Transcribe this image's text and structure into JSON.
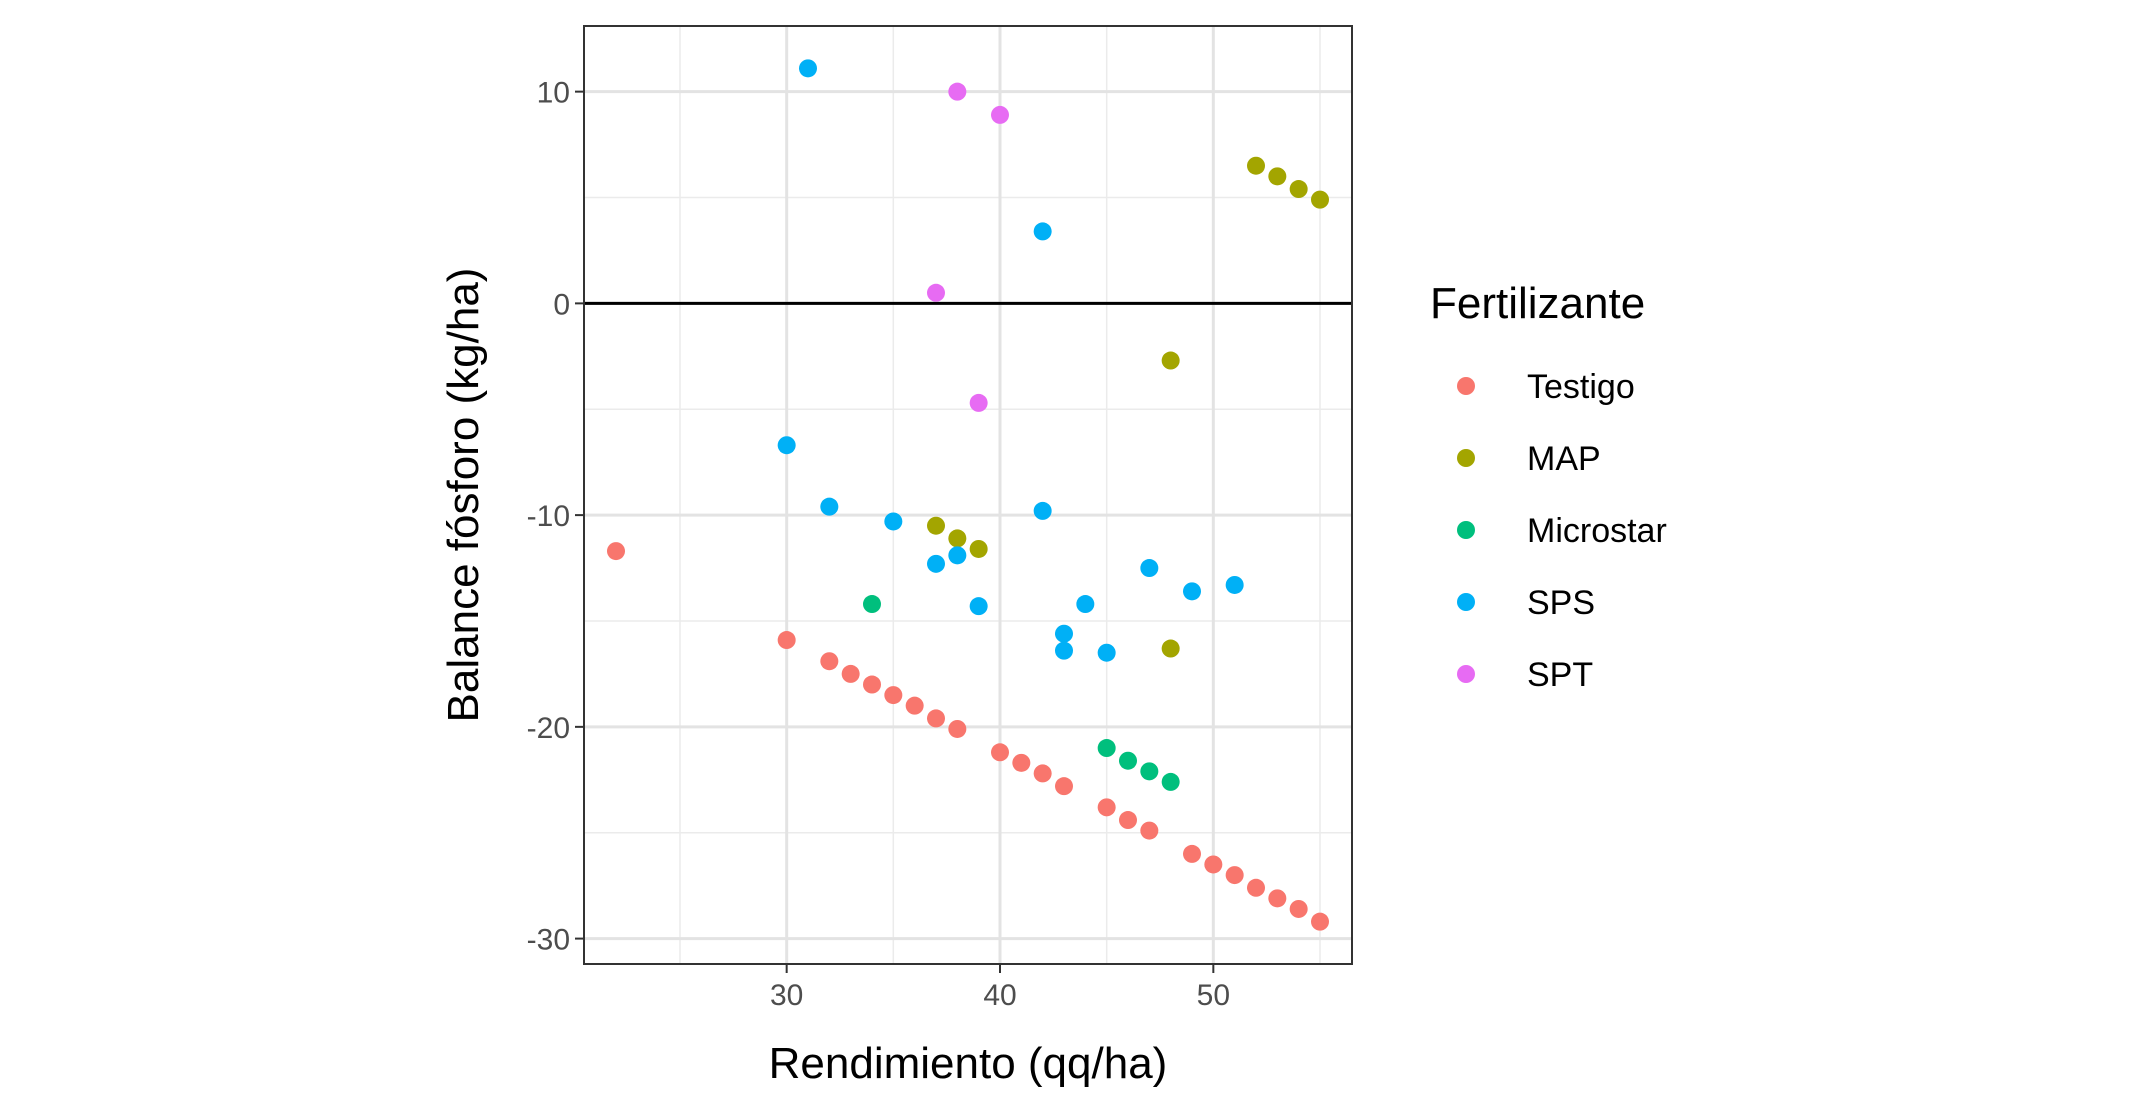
{
  "chart_data": {
    "type": "scatter",
    "title": "",
    "xlabel": "Rendimiento (qq/ha)",
    "ylabel": "Balance fósforo (kg/ha)",
    "xlim": [
      20.5,
      56.5
    ],
    "ylim": [
      -31.2,
      13.1
    ],
    "x_ticks": [
      30,
      40,
      50
    ],
    "x_minor_ticks": [
      25,
      35,
      45,
      55
    ],
    "y_ticks": [
      10,
      0,
      -10,
      -20,
      -30
    ],
    "y_tick_labels": [
      "10",
      "0",
      "-10",
      "-20",
      "-30"
    ],
    "y_minor_ticks": [
      5,
      -5,
      -15,
      -25
    ],
    "reference_line_y": 0,
    "grid": true,
    "legend_title": "Fertilizante",
    "legend_position": "right",
    "series": [
      {
        "name": "Testigo",
        "color": "#F8766D",
        "points": [
          [
            22,
            -11.7
          ],
          [
            30,
            -15.9
          ],
          [
            32,
            -16.9
          ],
          [
            33,
            -17.5
          ],
          [
            34,
            -18.0
          ],
          [
            35,
            -18.5
          ],
          [
            36,
            -19.0
          ],
          [
            37,
            -19.6
          ],
          [
            38,
            -20.1
          ],
          [
            40,
            -21.2
          ],
          [
            41,
            -21.7
          ],
          [
            42,
            -22.2
          ],
          [
            43,
            -22.8
          ],
          [
            45,
            -23.8
          ],
          [
            46,
            -24.4
          ],
          [
            47,
            -24.9
          ],
          [
            49,
            -26.0
          ],
          [
            50,
            -26.5
          ],
          [
            51,
            -27.0
          ],
          [
            52,
            -27.6
          ],
          [
            53,
            -28.1
          ],
          [
            54,
            -28.6
          ],
          [
            55,
            -29.2
          ]
        ]
      },
      {
        "name": "MAP",
        "color": "#A3A500",
        "points": [
          [
            52,
            6.5
          ],
          [
            53,
            6.0
          ],
          [
            54,
            5.4
          ],
          [
            55,
            4.9
          ],
          [
            48,
            -2.7
          ],
          [
            37,
            -10.5
          ],
          [
            38,
            -11.1
          ],
          [
            39,
            -11.6
          ],
          [
            48,
            -16.3
          ]
        ]
      },
      {
        "name": "Microstar",
        "color": "#00BF7D",
        "points": [
          [
            34,
            -14.2
          ],
          [
            45,
            -21.0
          ],
          [
            46,
            -21.6
          ],
          [
            47,
            -22.1
          ],
          [
            48,
            -22.6
          ]
        ]
      },
      {
        "name": "SPS",
        "color": "#00B0F6",
        "points": [
          [
            31,
            11.1
          ],
          [
            42,
            3.4
          ],
          [
            30,
            -6.7
          ],
          [
            32,
            -9.6
          ],
          [
            35,
            -10.3
          ],
          [
            42,
            -9.8
          ],
          [
            37,
            -12.3
          ],
          [
            38,
            -11.9
          ],
          [
            39,
            -14.3
          ],
          [
            44,
            -14.2
          ],
          [
            47,
            -12.5
          ],
          [
            49,
            -13.6
          ],
          [
            51,
            -13.3
          ],
          [
            43,
            -15.6
          ],
          [
            43,
            -16.4
          ],
          [
            45,
            -16.5
          ]
        ]
      },
      {
        "name": "SPT",
        "color": "#E76BF3",
        "points": [
          [
            38,
            10.0
          ],
          [
            40,
            8.9
          ],
          [
            37,
            0.5
          ],
          [
            39,
            -4.7
          ]
        ]
      }
    ]
  }
}
